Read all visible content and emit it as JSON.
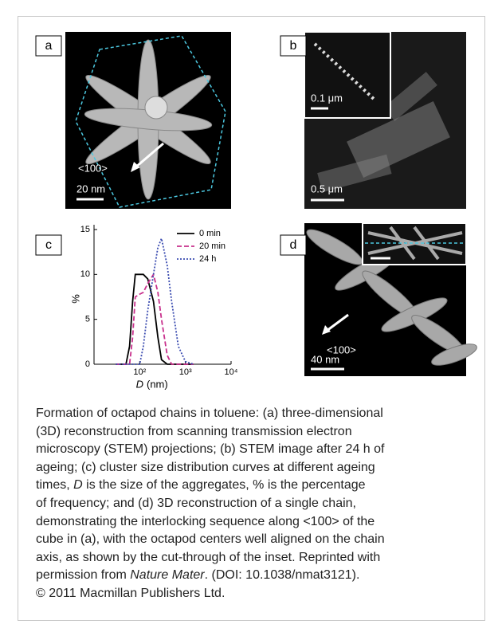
{
  "panels": [
    {
      "label": "a",
      "texts": [
        "<100>",
        "20 nm"
      ]
    },
    {
      "label": "b",
      "texts": [
        "0.1 μm",
        "0.5 μm"
      ]
    },
    {
      "label": "c"
    },
    {
      "label": "d",
      "texts": [
        "<100>",
        "40 nm"
      ]
    }
  ],
  "chart_data": {
    "type": "line",
    "ylabel": "%",
    "xlabel_symbol": "D",
    "xlabel_unit": "(nm)",
    "log_x": true,
    "x": [
      30,
      50,
      60,
      70,
      80,
      100,
      120,
      150,
      200,
      250,
      300,
      400,
      500,
      700,
      1000,
      1500
    ],
    "series": [
      {
        "name": "0 min",
        "color": "#000000",
        "style": "solid",
        "values": [
          0,
          0,
          2,
          7,
          10,
          10,
          10,
          9.5,
          7,
          3,
          0.5,
          0,
          0,
          0,
          0,
          0
        ]
      },
      {
        "name": "20 min",
        "color": "#c8308c",
        "style": "dashed",
        "values": [
          0,
          0,
          0,
          3,
          7.5,
          7.8,
          8,
          9,
          10,
          8,
          5,
          1,
          0,
          0,
          0,
          0
        ]
      },
      {
        "name": "24 h",
        "color": "#3a4bb0",
        "style": "dotted",
        "values": [
          0,
          0,
          0,
          0,
          0,
          0,
          2,
          6,
          10,
          13,
          14,
          11,
          7,
          2,
          0.3,
          0
        ]
      }
    ],
    "xlim": [
      10,
      10000
    ],
    "xticks": [
      {
        "value": 100,
        "label": "10²"
      },
      {
        "value": 1000,
        "label": "10³"
      },
      {
        "value": 10000,
        "label": "10⁴"
      }
    ],
    "ylim": [
      0,
      15
    ],
    "yticks": [
      0,
      5,
      10,
      15
    ]
  },
  "caption": {
    "lines": [
      [
        {
          "text": "Formation of octapod chains in toluene: (a) three-dimensional",
          "italic": false
        }
      ],
      [
        {
          "text": "(3D) reconstruction from scanning transmission electron",
          "italic": false
        }
      ],
      [
        {
          "text": "microscopy (STEM) projections; (b) STEM image after 24 h of",
          "italic": false
        }
      ],
      [
        {
          "text": "ageing; (c) cluster size distribution curves at different ageing",
          "italic": false
        }
      ],
      [
        {
          "text": "times, ",
          "italic": false
        },
        {
          "text": "D",
          "italic": true
        },
        {
          "text": " is the size of the aggregates, % is the percentage",
          "italic": false
        }
      ],
      [
        {
          "text": "of frequency; and (d) 3D reconstruction of a single chain,",
          "italic": false
        }
      ],
      [
        {
          "text": "demonstrating the interlocking sequence along <100> of the",
          "italic": false
        }
      ],
      [
        {
          "text": "cube in (a), with the octapod centers well aligned on the chain",
          "italic": false
        }
      ],
      [
        {
          "text": "axis, as shown by the cut-through of the inset. Reprinted with",
          "italic": false
        }
      ],
      [
        {
          "text": "permission from ",
          "italic": false
        },
        {
          "text": "Nature Mater",
          "italic": true
        },
        {
          "text": ". (DOI: 10.1038/nmat3121).",
          "italic": false
        }
      ],
      [
        {
          "text": "© 2011 Macmillan Publishers Ltd.",
          "italic": false
        }
      ]
    ]
  }
}
